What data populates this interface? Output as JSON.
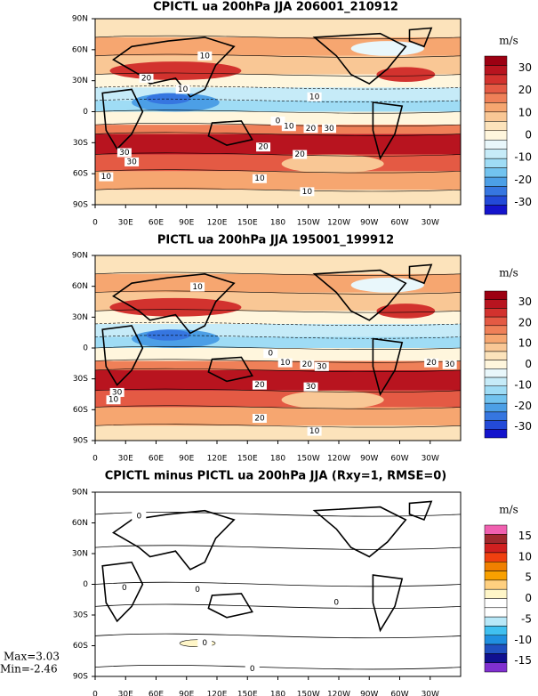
{
  "panels": [
    {
      "title": "CPICTL ua 200hPa JJA 206001_210912",
      "units": "m/s",
      "colorbar_labels": [
        "30",
        "20",
        "10",
        "0",
        "-10",
        "-20",
        "-30"
      ],
      "colorbar_colors": [
        "#9c0012",
        "#b8141f",
        "#d2322e",
        "#e45a44",
        "#ef8058",
        "#f6a670",
        "#f9c795",
        "#fce3bb",
        "#fff6dd",
        "#e9f7fb",
        "#c6ebf8",
        "#9fdcf5",
        "#72c3ef",
        "#4c9fe6",
        "#3676e0",
        "#234ad8",
        "#1414cc"
      ],
      "contour_labels": [
        "10",
        "20",
        "10",
        "10",
        "0",
        "10",
        "20",
        "30",
        "30",
        "30",
        "20",
        "20",
        "10",
        "10",
        "10"
      ]
    },
    {
      "title": "PICTL ua 200hPa JJA 195001_199912",
      "units": "m/s",
      "colorbar_labels": [
        "30",
        "20",
        "10",
        "0",
        "-10",
        "-20",
        "-30"
      ],
      "colorbar_colors": [
        "#9c0012",
        "#b8141f",
        "#d2322e",
        "#e45a44",
        "#ef8058",
        "#f6a670",
        "#f9c795",
        "#fce3bb",
        "#fff6dd",
        "#e9f7fb",
        "#c6ebf8",
        "#9fdcf5",
        "#72c3ef",
        "#4c9fe6",
        "#3676e0",
        "#234ad8",
        "#1414cc"
      ],
      "contour_labels": [
        "10",
        "0",
        "10",
        "20",
        "30",
        "20",
        "30",
        "30",
        "20",
        "30",
        "10",
        "20",
        "10"
      ]
    },
    {
      "title": "CPICTL minus PICTL ua 200hPa JJA (Rxy=1, RMSE=0)",
      "units": "m/s",
      "colorbar_labels": [
        "15",
        "10",
        "5",
        "0",
        "-5",
        "-10",
        "-15"
      ],
      "colorbar_colors": [
        "#f060b0",
        "#a0282d",
        "#d02020",
        "#f04010",
        "#f08000",
        "#f8a000",
        "#ffd080",
        "#fff6c8",
        "#ffffff",
        "#ffffff",
        "#b8e8f8",
        "#40c0f0",
        "#2090e0",
        "#2050c0",
        "#101090",
        "#8030d0"
      ],
      "contour_labels": [
        "0",
        "0",
        "0",
        "0",
        "0",
        "0"
      ]
    }
  ],
  "lat_labels": [
    "90N",
    "60N",
    "30N",
    "0",
    "30S",
    "60S",
    "90S"
  ],
  "lon_labels": [
    "0",
    "30E",
    "60E",
    "90E",
    "120E",
    "150E",
    "180",
    "150W",
    "120W",
    "90W",
    "60W",
    "30W"
  ],
  "stats": {
    "max": "Max=3.03",
    "min": "Min=-2.46"
  }
}
